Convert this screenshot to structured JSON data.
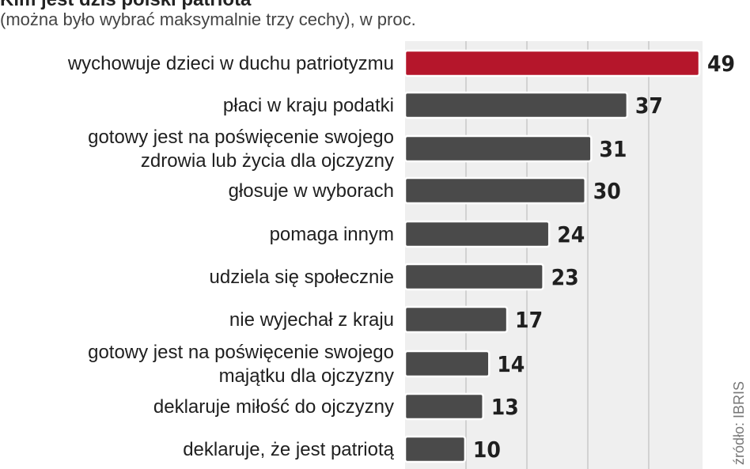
{
  "header": {
    "title": "Kim jest dziś polski patriota",
    "subtitle": "(można było wybrać maksymalnie trzy cechy), w proc."
  },
  "colors": {
    "highlight": "#b5162b",
    "bar": "#4a4a4a",
    "panel": "#efefef",
    "text": "#1f1f1f"
  },
  "chart_data": {
    "type": "bar",
    "orientation": "horizontal",
    "title": "Kim jest dziś polski patriota",
    "subtitle": "(można było wybrać maksymalnie trzy cechy), w proc.",
    "categories": [
      "wychowuje dzieci w duchu patriotyzmu",
      "płaci w kraju podatki",
      "gotowy jest na poświęcenie swojego zdrowia lub życia dla ojczyzny",
      "głosuje w wyborach",
      "pomaga innym",
      "udziela się społecznie",
      "nie wyjechał z kraju",
      "gotowy jest na poświęcenie swojego majątku dla ojczyzny",
      "deklaruje miłość do ojczyzny",
      "deklaruje, że jest patriotą"
    ],
    "label_lines": [
      [
        "wychowuje dzieci w duchu patriotyzmu"
      ],
      [
        "płaci w kraju podatki"
      ],
      [
        "gotowy jest na poświęcenie swojego",
        "zdrowia lub życia dla ojczyzny"
      ],
      [
        "głosuje w wyborach"
      ],
      [
        "pomaga innym"
      ],
      [
        "udziela się społecznie"
      ],
      [
        "nie wyjechał z kraju"
      ],
      [
        "gotowy jest na poświęcenie swojego",
        "majątku dla ojczyzny"
      ],
      [
        "deklaruje miłość do ojczyzny"
      ],
      [
        "deklaruje, że jest patriotą"
      ]
    ],
    "values": [
      49,
      37,
      31,
      30,
      24,
      23,
      17,
      14,
      13,
      10
    ],
    "highlight_index": 0,
    "xlim": [
      0,
      49
    ],
    "grid": true,
    "data_labels": true,
    "source": "źródło: IBRIS"
  }
}
